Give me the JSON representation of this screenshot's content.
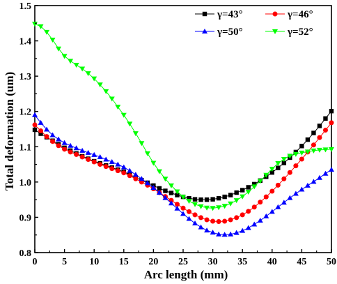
{
  "chart_data": {
    "type": "line",
    "title": "",
    "xlabel": "Arc length (mm)",
    "ylabel": "Total deformation (um)",
    "xlim": [
      0,
      50
    ],
    "ylim": [
      0.8,
      1.5
    ],
    "x_ticks": [
      "0",
      "5",
      "10",
      "15",
      "20",
      "25",
      "30",
      "35",
      "40",
      "45",
      "50"
    ],
    "y_ticks": [
      "0.8",
      "0.9",
      "1.0",
      "1.1",
      "1.2",
      "1.3",
      "1.4",
      "1.5"
    ],
    "grid": false,
    "legend_position": "top-right",
    "x": [
      0,
      1,
      2,
      3,
      4,
      5,
      6,
      7,
      8,
      9,
      10,
      11,
      12,
      13,
      14,
      15,
      16,
      17,
      18,
      19,
      20,
      21,
      22,
      23,
      24,
      25,
      26,
      27,
      28,
      29,
      30,
      31,
      32,
      33,
      34,
      35,
      36,
      37,
      38,
      39,
      40,
      41,
      42,
      43,
      44,
      45,
      46,
      47,
      48,
      49,
      50
    ],
    "series": [
      {
        "name": "γ=43°",
        "color": "#000000",
        "marker": "square",
        "values": [
          1.148,
          1.137,
          1.127,
          1.117,
          1.107,
          1.097,
          1.089,
          1.081,
          1.073,
          1.066,
          1.059,
          1.053,
          1.047,
          1.041,
          1.035,
          1.029,
          1.021,
          1.013,
          1.005,
          0.998,
          0.99,
          0.982,
          0.975,
          0.969,
          0.963,
          0.958,
          0.954,
          0.951,
          0.95,
          0.95,
          0.951,
          0.954,
          0.958,
          0.963,
          0.97,
          0.977,
          0.985,
          0.994,
          1.004,
          1.015,
          1.027,
          1.04,
          1.054,
          1.069,
          1.085,
          1.102,
          1.12,
          1.139,
          1.159,
          1.18,
          1.201
        ]
      },
      {
        "name": "γ=46°",
        "color": "#ff0000",
        "marker": "circle",
        "values": [
          1.162,
          1.145,
          1.129,
          1.115,
          1.103,
          1.093,
          1.085,
          1.078,
          1.071,
          1.064,
          1.057,
          1.05,
          1.044,
          1.038,
          1.032,
          1.026,
          1.018,
          1.009,
          1.0,
          0.991,
          0.981,
          0.97,
          0.959,
          0.948,
          0.937,
          0.926,
          0.916,
          0.907,
          0.899,
          0.893,
          0.889,
          0.888,
          0.889,
          0.893,
          0.899,
          0.907,
          0.917,
          0.929,
          0.943,
          0.958,
          0.974,
          0.991,
          1.009,
          1.027,
          1.046,
          1.065,
          1.085,
          1.105,
          1.126,
          1.147,
          1.168
        ]
      },
      {
        "name": "γ=50°",
        "color": "#0000ff",
        "marker": "triangle-up",
        "values": [
          1.19,
          1.168,
          1.149,
          1.133,
          1.121,
          1.111,
          1.103,
          1.096,
          1.089,
          1.083,
          1.077,
          1.071,
          1.064,
          1.057,
          1.05,
          1.042,
          1.032,
          1.021,
          1.009,
          0.997,
          0.984,
          0.97,
          0.955,
          0.94,
          0.925,
          0.91,
          0.896,
          0.883,
          0.872,
          0.863,
          0.857,
          0.852,
          0.851,
          0.852,
          0.856,
          0.862,
          0.87,
          0.88,
          0.891,
          0.903,
          0.916,
          0.929,
          0.942,
          0.955,
          0.967,
          0.979,
          0.99,
          1.001,
          1.012,
          1.024,
          1.035
        ]
      },
      {
        "name": "γ=52°",
        "color": "#00ff00",
        "marker": "triangle-down",
        "values": [
          1.448,
          1.441,
          1.425,
          1.403,
          1.378,
          1.357,
          1.343,
          1.332,
          1.321,
          1.308,
          1.293,
          1.276,
          1.257,
          1.236,
          1.213,
          1.19,
          1.165,
          1.138,
          1.11,
          1.081,
          1.054,
          1.03,
          1.009,
          0.99,
          0.973,
          0.958,
          0.946,
          0.937,
          0.931,
          0.927,
          0.926,
          0.928,
          0.932,
          0.939,
          0.948,
          0.959,
          0.972,
          0.987,
          1.003,
          1.02,
          1.037,
          1.053,
          1.065,
          1.074,
          1.079,
          1.083,
          1.086,
          1.089,
          1.091,
          1.092,
          1.093
        ]
      }
    ]
  }
}
